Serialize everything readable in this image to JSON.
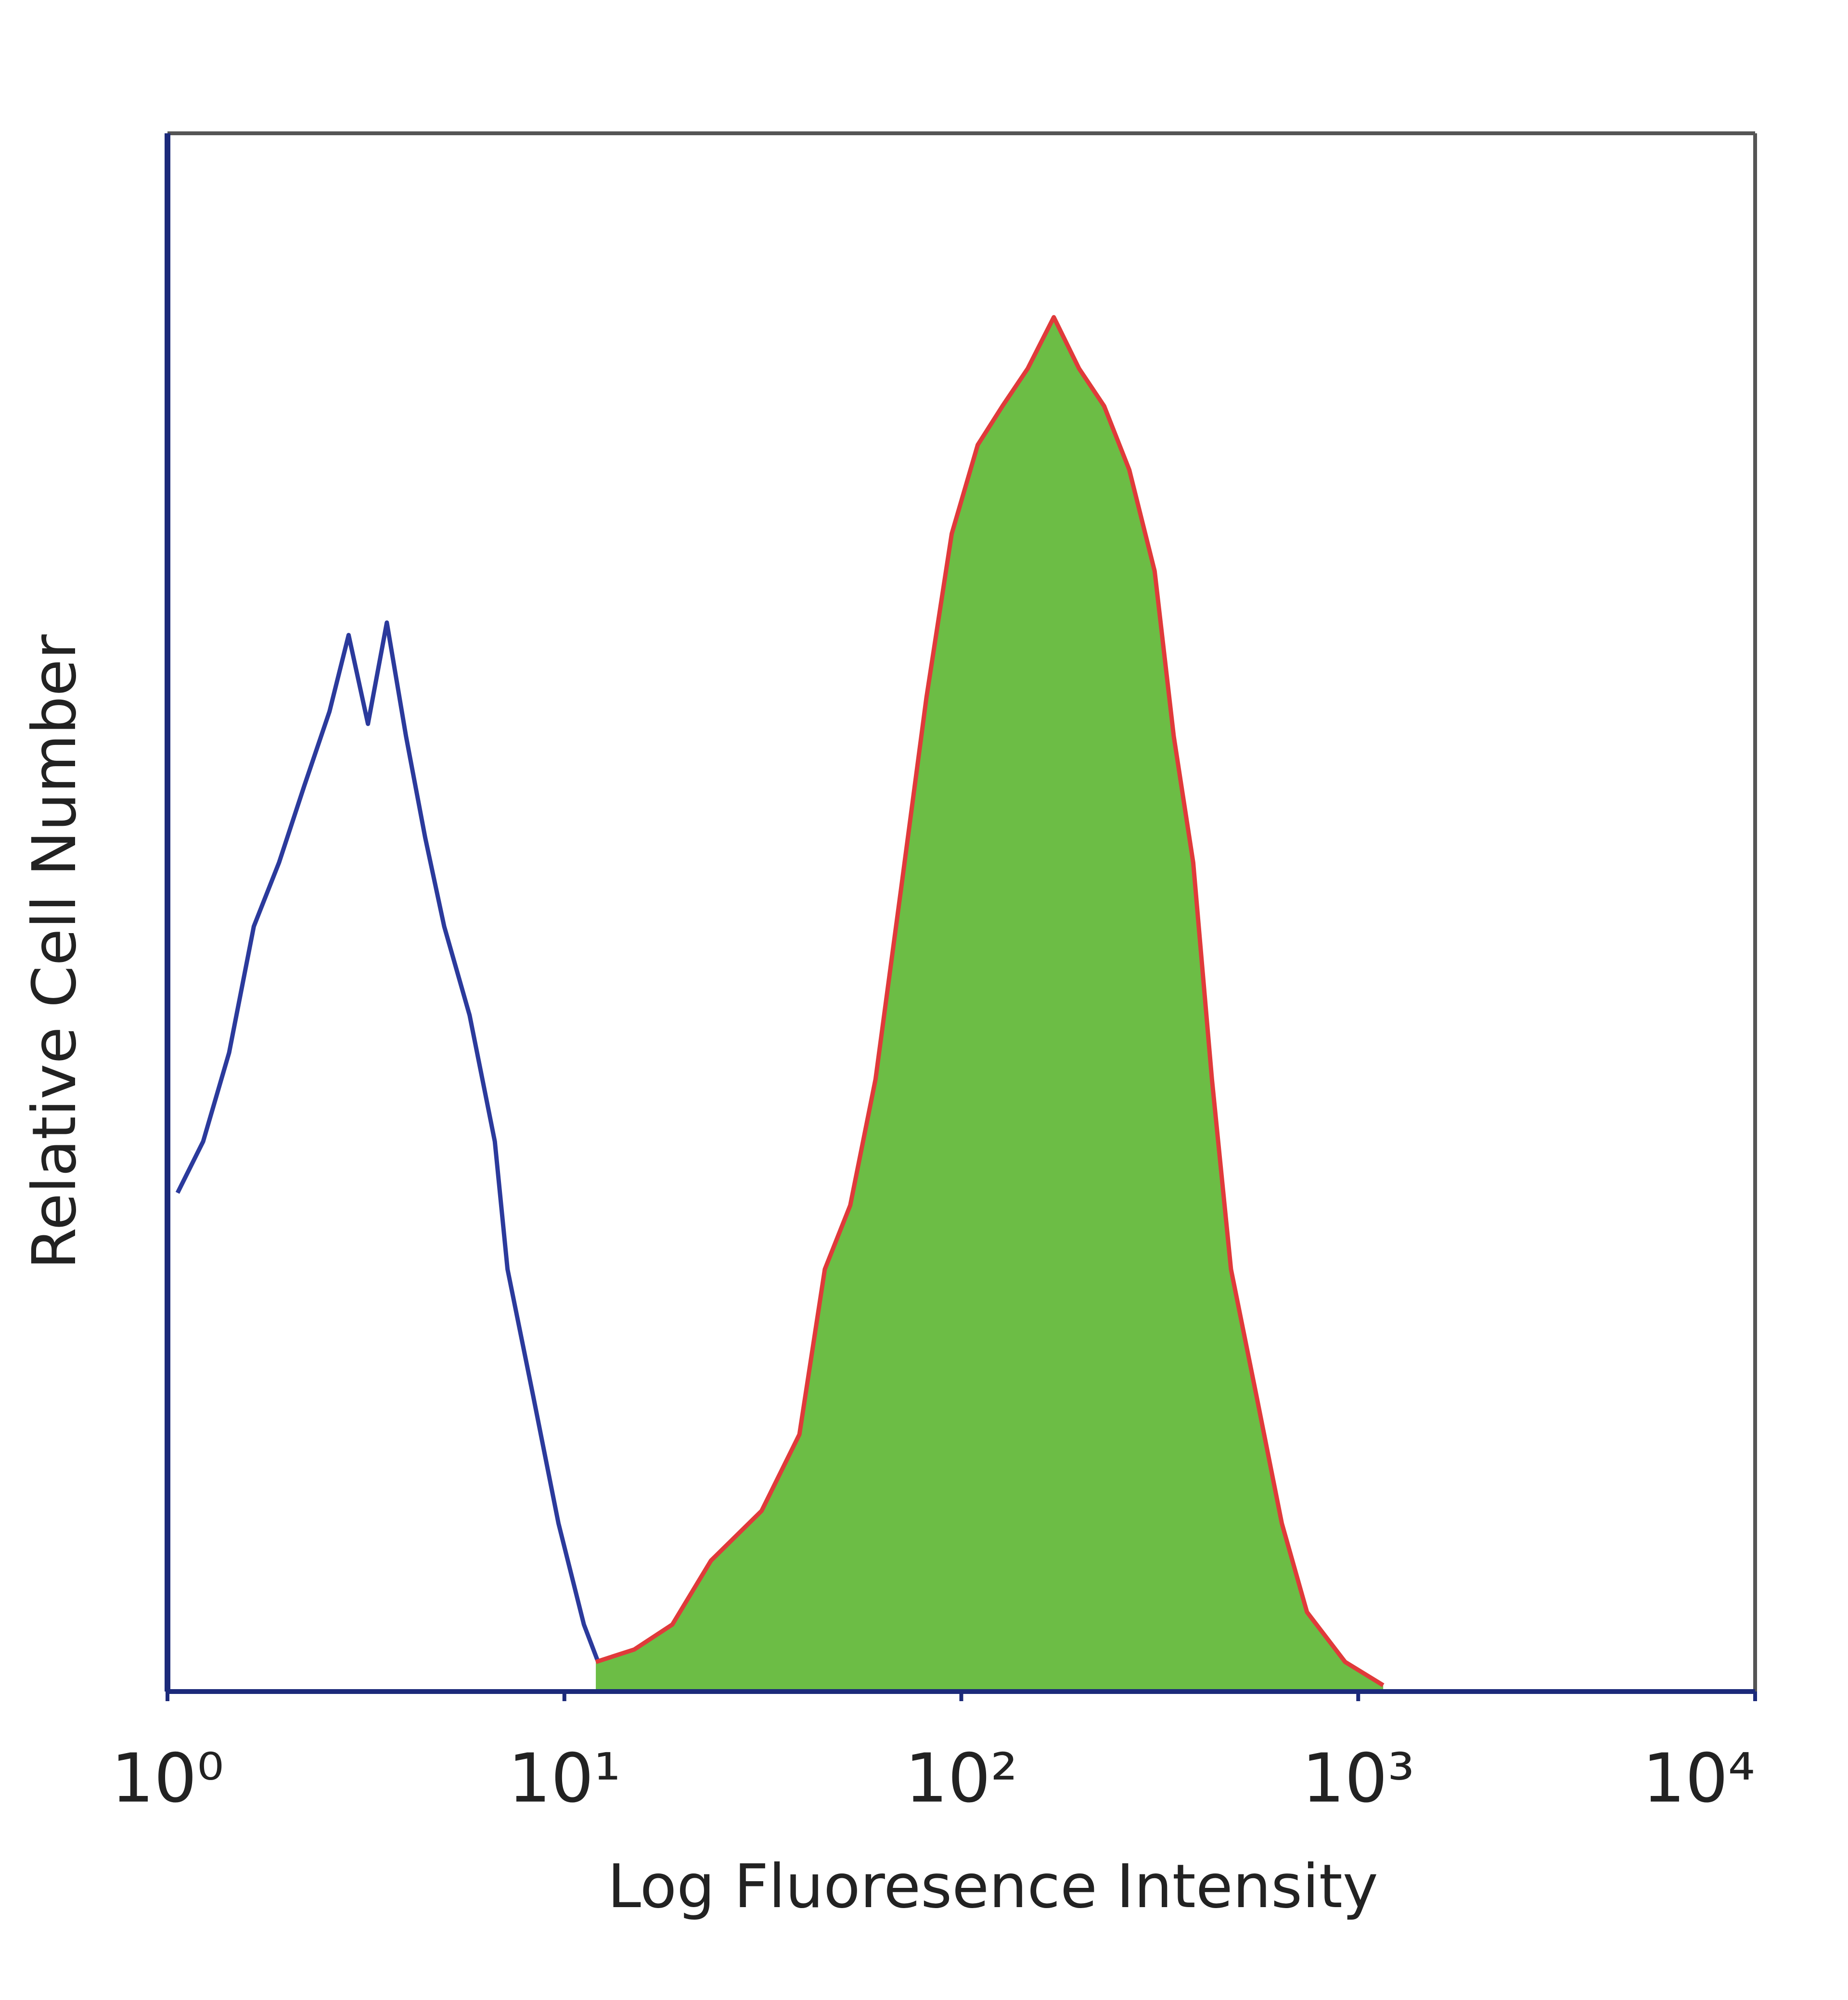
{
  "chart_data": {
    "type": "histogram-overlay",
    "x_label": "Log Fluoresence Intensity",
    "y_label": "Relative Cell Number",
    "xscale": "log",
    "xlim": [
      1,
      10000
    ],
    "ylim": [
      0,
      100
    ],
    "xticks": [
      {
        "value": 1,
        "label": "10⁰"
      },
      {
        "value": 10,
        "label": "10¹"
      },
      {
        "value": 100,
        "label": "10²"
      },
      {
        "value": 1000,
        "label": "10³"
      },
      {
        "value": 10000,
        "label": "10⁴"
      }
    ],
    "series": [
      {
        "color": "#2b3a9c",
        "filled": false,
        "x": [
          1.06,
          1.23,
          1.43,
          1.65,
          1.91,
          2.21,
          2.56,
          2.86,
          3.2,
          3.57,
          3.99,
          4.46,
          4.98,
          5.77,
          6.68,
          7.19,
          8.34,
          9.66,
          11.2,
          12.5,
          15.0,
          42.1
        ],
        "values": [
          32.0,
          35.3,
          41.0,
          49.1,
          53.2,
          58.1,
          62.9,
          67.8,
          62.1,
          68.6,
          61.3,
          54.8,
          49.1,
          43.4,
          35.3,
          27.1,
          19.0,
          10.8,
          4.3,
          1.1,
          0.4,
          0.4
        ]
      },
      {
        "color": "#e03a3a",
        "fill": "#6cbd45",
        "filled": true,
        "x": [
          12.0,
          15.0,
          18.7,
          23.4,
          31.4,
          39.1,
          45.3,
          52.5,
          60.8,
          70.5,
          81.7,
          94.6,
          110,
          127,
          147,
          171,
          198,
          229,
          265,
          307,
          343,
          384,
          428,
          478,
          554,
          642,
          743,
          927,
          1156
        ],
        "values": [
          1.9,
          2.7,
          4.3,
          8.4,
          11.6,
          16.5,
          27.1,
          31.2,
          39.3,
          51.5,
          63.8,
          74.3,
          80.0,
          82.5,
          84.9,
          88.2,
          84.9,
          82.5,
          78.4,
          71.9,
          61.3,
          53.2,
          39.3,
          27.1,
          19.0,
          10.8,
          5.1,
          1.9,
          0.4
        ]
      }
    ]
  }
}
